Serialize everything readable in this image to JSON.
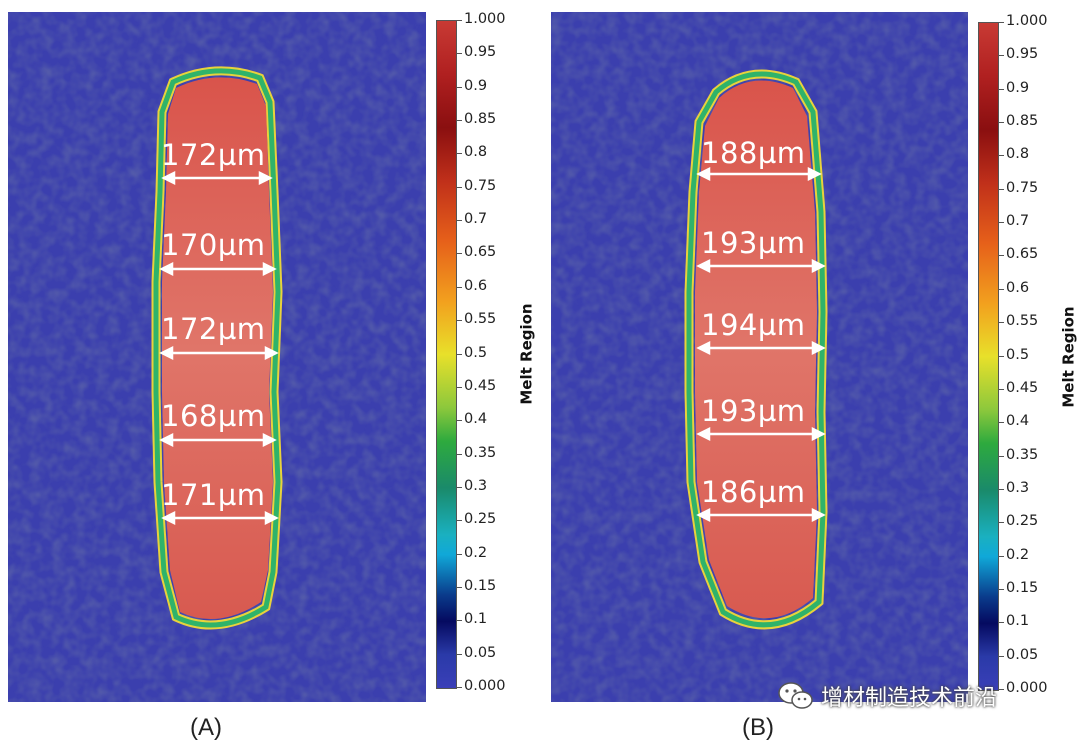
{
  "panels": [
    {
      "caption": "(A)",
      "measurements": [
        "172µm",
        "170µm",
        "172µm",
        "168µm",
        "171µm"
      ]
    },
    {
      "caption": "(B)",
      "measurements": [
        "188µm",
        "193µm",
        "194µm",
        "193µm",
        "186µm"
      ]
    }
  ],
  "colorbar": {
    "title": "Melt Region",
    "ticks": [
      "1.000",
      "0.95",
      "0.9",
      "0.85",
      "0.8",
      "0.75",
      "0.7",
      "0.65",
      "0.6",
      "0.55",
      "0.5",
      "0.45",
      "0.4",
      "0.35",
      "0.3",
      "0.25",
      "0.2",
      "0.15",
      "0.1",
      "0.05",
      "0.000"
    ]
  },
  "colors": {
    "powder": "#3b3fae",
    "melt": "#d9574e",
    "scale_high": "#c83a34",
    "scale_low": "#3a3fb8"
  },
  "watermark": {
    "text": "增材制造技术前沿",
    "icon": "wechat-icon"
  }
}
